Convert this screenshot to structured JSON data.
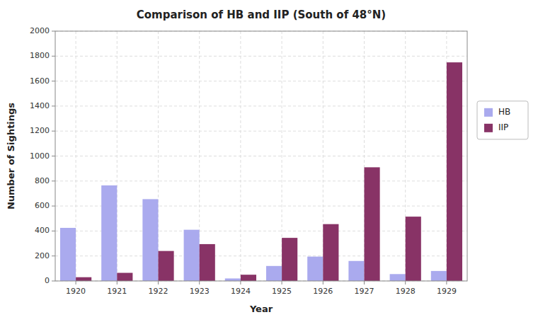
{
  "chart_data": {
    "type": "bar",
    "title": "Comparison of HB and IIP (South of 48°N)",
    "xlabel": "Year",
    "ylabel": "Number of Sightings",
    "categories": [
      "1920",
      "1921",
      "1922",
      "1923",
      "1924",
      "1925",
      "1926",
      "1927",
      "1928",
      "1929"
    ],
    "series": [
      {
        "name": "HB",
        "color": "#aaaaee",
        "values": [
          425,
          765,
          655,
          410,
          20,
          120,
          195,
          160,
          55,
          80
        ]
      },
      {
        "name": "IIP",
        "color": "#883366",
        "values": [
          30,
          65,
          240,
          295,
          50,
          345,
          455,
          910,
          515,
          1750
        ]
      }
    ],
    "ylim": [
      0,
      2000
    ],
    "yticks": [
      0,
      200,
      400,
      600,
      800,
      1000,
      1200,
      1400,
      1600,
      1800,
      2000
    ],
    "grid": true,
    "legend": "right"
  }
}
